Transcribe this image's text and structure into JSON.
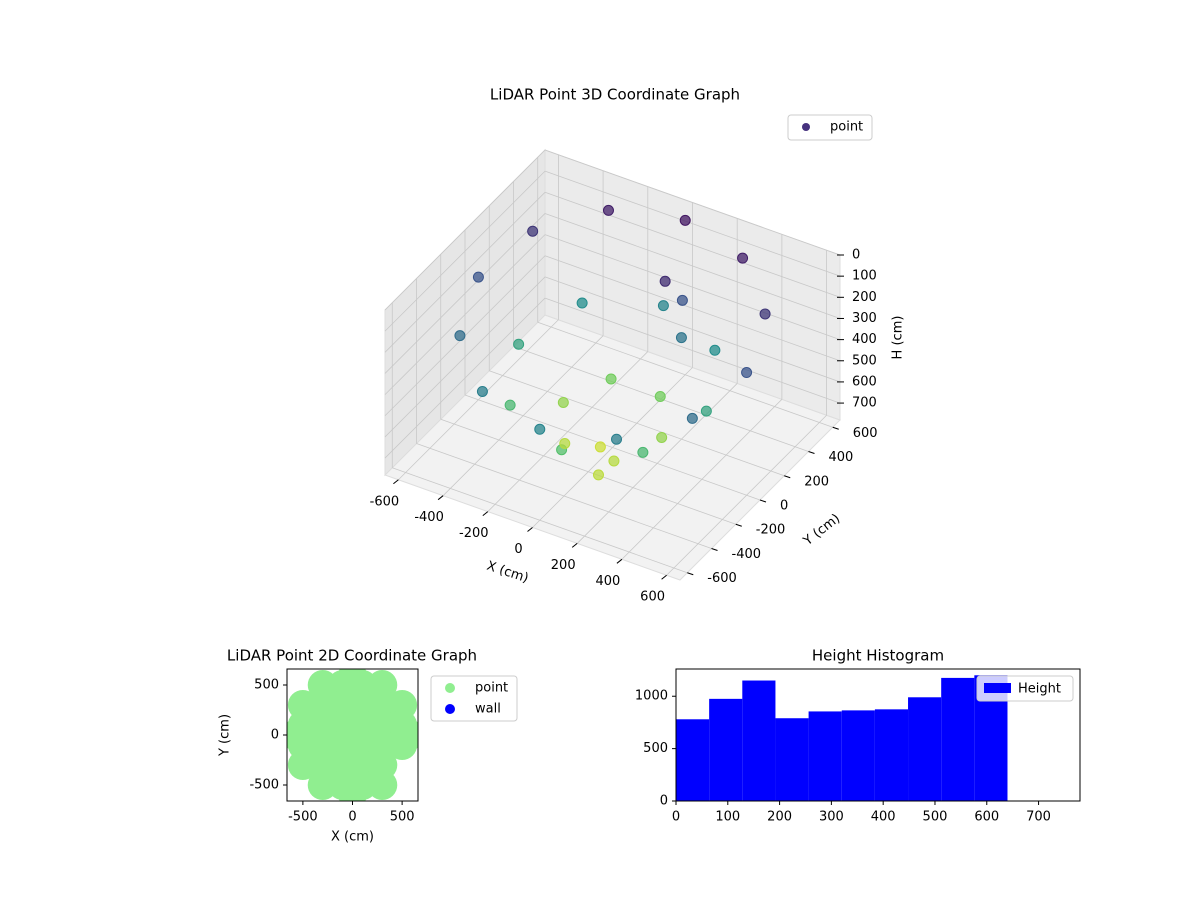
{
  "chart_data": [
    {
      "type": "scatter3d",
      "title": "LiDAR Point 3D Coordinate Graph",
      "xlabel": "X (cm)",
      "ylabel": "Y (cm)",
      "zlabel": "H (cm)",
      "xlim": [
        -660,
        660
      ],
      "ylim": [
        -660,
        660
      ],
      "zlim": [
        0,
        780
      ],
      "xticks": [
        -600,
        -400,
        -200,
        0,
        200,
        400,
        600
      ],
      "yticks": [
        -600,
        -400,
        -200,
        0,
        200,
        400,
        600
      ],
      "zticks": [
        0,
        100,
        200,
        300,
        400,
        500,
        600,
        700
      ],
      "colormap": "viridis",
      "legend": "upper right",
      "grid": true,
      "series": [
        {
          "name": "point",
          "color": "#46327e",
          "x": [
            600,
            520,
            300,
            0,
            -300,
            -520,
            -600,
            -520,
            -300,
            0,
            300,
            520,
            420,
            297,
            0,
            -297,
            -420,
            -297,
            0,
            297,
            220,
            110,
            -110,
            -220,
            -110,
            110,
            0,
            100,
            100,
            150,
            200
          ],
          "y": [
            0,
            300,
            520,
            600,
            520,
            300,
            0,
            -300,
            -520,
            -600,
            -520,
            -300,
            0,
            297,
            420,
            297,
            0,
            -297,
            -420,
            -297,
            0,
            191,
            191,
            0,
            -191,
            -191,
            -100,
            -300,
            250,
            300,
            200
          ],
          "z": [
            200,
            125,
            70,
            50,
            70,
            125,
            200,
            275,
            330,
            350,
            330,
            275,
            450,
            379,
            350,
            379,
            450,
            521,
            550,
            521,
            650,
            607,
            607,
            650,
            693,
            693,
            720,
            700,
            100,
            200,
            300
          ]
        }
      ]
    },
    {
      "type": "scatter",
      "title": "LiDAR Point 2D Coordinate Graph",
      "xlabel": "X (cm)",
      "ylabel": "Y (cm)",
      "xlim": [
        -660,
        660
      ],
      "ylim": [
        -660,
        660
      ],
      "xticks": [
        -500,
        0,
        500
      ],
      "yticks": [
        -500,
        0,
        500
      ],
      "legend": "outside right",
      "series": [
        {
          "name": "point",
          "color": "#90ee90",
          "x": [
            -300,
            -100,
            100,
            300,
            -500,
            -300,
            -100,
            100,
            300,
            500,
            -500,
            -300,
            -100,
            100,
            300,
            500,
            -500,
            -300,
            -100,
            100,
            300,
            500,
            -500,
            -300,
            -100,
            100,
            300,
            -300,
            -100,
            100,
            300,
            -580,
            0,
            0,
            580
          ],
          "y": [
            500,
            500,
            500,
            500,
            300,
            300,
            300,
            300,
            300,
            300,
            100,
            100,
            100,
            100,
            100,
            100,
            -100,
            -100,
            -100,
            -100,
            -100,
            -100,
            -300,
            -300,
            -300,
            -300,
            -300,
            -500,
            -500,
            -500,
            -500,
            0,
            580,
            -580,
            0
          ]
        },
        {
          "name": "wall",
          "color": "#0000ff",
          "x": [],
          "y": []
        }
      ]
    },
    {
      "type": "histogram",
      "title": "Height Histogram",
      "bins": [
        0,
        64,
        128,
        192,
        256,
        320,
        384,
        448,
        512,
        576,
        640
      ],
      "xlim": [
        0,
        780
      ],
      "ylim": [
        0,
        1260
      ],
      "xticks": [
        0,
        100,
        200,
        300,
        400,
        500,
        600,
        700
      ],
      "yticks": [
        0,
        500,
        1000
      ],
      "legend": "upper right",
      "series": [
        {
          "name": "Height",
          "color": "#0000ff",
          "values": [
            780,
            975,
            1150,
            790,
            855,
            865,
            875,
            990,
            1175,
            1200
          ]
        }
      ]
    }
  ]
}
